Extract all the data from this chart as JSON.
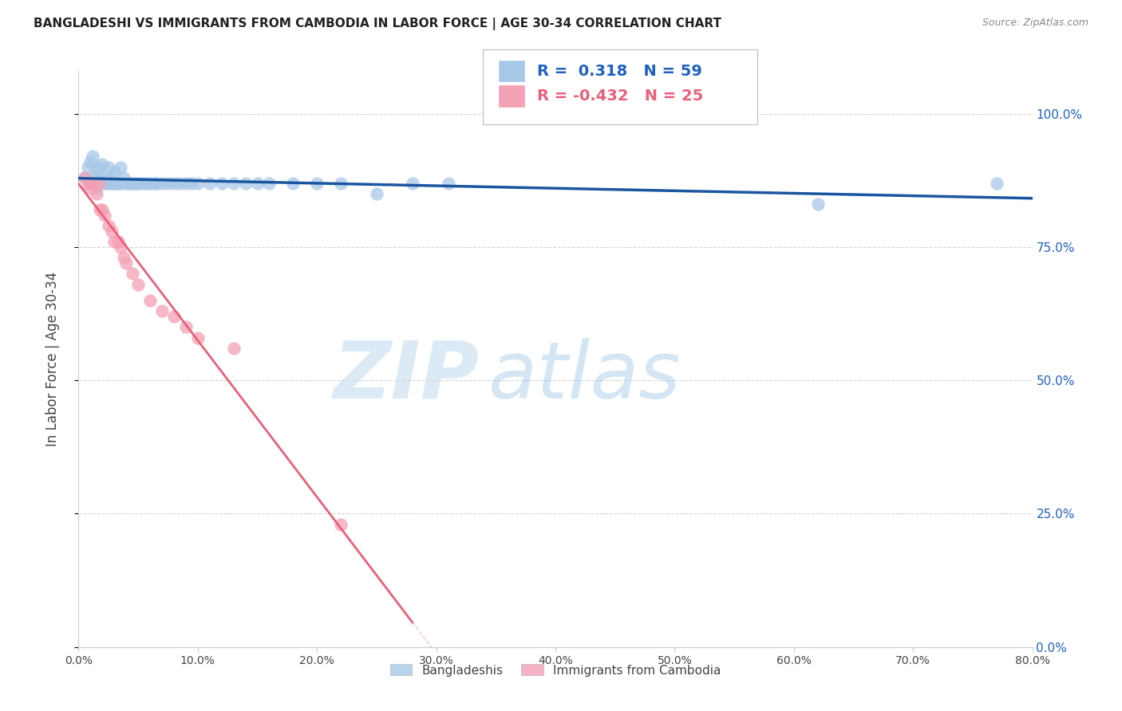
{
  "title": "BANGLADESHI VS IMMIGRANTS FROM CAMBODIA IN LABOR FORCE | AGE 30-34 CORRELATION CHART",
  "source": "Source: ZipAtlas.com",
  "ylabel": "In Labor Force | Age 30-34",
  "xlim": [
    0.0,
    0.8
  ],
  "ylim": [
    0.0,
    1.08
  ],
  "watermark_zip": "ZIP",
  "watermark_atlas": "atlas",
  "legend_blue_label": "Bangladeshis",
  "legend_pink_label": "Immigrants from Cambodia",
  "legend_blue_r": "0.318",
  "legend_blue_n": "59",
  "legend_pink_r": "-0.432",
  "legend_pink_n": "25",
  "blue_color": "#a8c8e8",
  "pink_color": "#f4a0b5",
  "blue_line_color": "#1a56a0",
  "pink_line_color": "#e8607a",
  "grid_color": "#d0d0d0",
  "background_color": "#ffffff",
  "title_color": "#222222",
  "source_color": "#888888",
  "axis_label_color": "#444444",
  "ytick_color": "#2060c0",
  "xtick_color": "#444444",
  "blue_scatter_x": [
    0.005,
    0.008,
    0.01,
    0.01,
    0.012,
    0.013,
    0.015,
    0.015,
    0.016,
    0.017,
    0.018,
    0.02,
    0.02,
    0.022,
    0.023,
    0.025,
    0.025,
    0.027,
    0.028,
    0.03,
    0.03,
    0.032,
    0.033,
    0.035,
    0.036,
    0.038,
    0.04,
    0.042,
    0.043,
    0.045,
    0.048,
    0.05,
    0.052,
    0.055,
    0.058,
    0.06,
    0.063,
    0.065,
    0.07,
    0.075,
    0.08,
    0.085,
    0.09,
    0.095,
    0.1,
    0.11,
    0.12,
    0.13,
    0.14,
    0.15,
    0.16,
    0.18,
    0.2,
    0.22,
    0.25,
    0.28,
    0.31,
    0.62,
    0.77
  ],
  "blue_scatter_y": [
    0.88,
    0.9,
    0.87,
    0.91,
    0.92,
    0.88,
    0.86,
    0.895,
    0.87,
    0.9,
    0.88,
    0.87,
    0.905,
    0.88,
    0.87,
    0.87,
    0.9,
    0.88,
    0.87,
    0.87,
    0.89,
    0.87,
    0.87,
    0.9,
    0.87,
    0.88,
    0.87,
    0.87,
    0.87,
    0.87,
    0.87,
    0.87,
    0.87,
    0.87,
    0.87,
    0.87,
    0.87,
    0.87,
    0.87,
    0.87,
    0.87,
    0.87,
    0.87,
    0.87,
    0.87,
    0.87,
    0.87,
    0.87,
    0.87,
    0.87,
    0.87,
    0.87,
    0.87,
    0.87,
    0.85,
    0.87,
    0.87,
    0.83,
    0.87
  ],
  "pink_scatter_x": [
    0.005,
    0.008,
    0.01,
    0.012,
    0.015,
    0.017,
    0.018,
    0.02,
    0.022,
    0.025,
    0.028,
    0.03,
    0.033,
    0.035,
    0.038,
    0.04,
    0.045,
    0.05,
    0.06,
    0.07,
    0.08,
    0.09,
    0.1,
    0.13,
    0.22
  ],
  "pink_scatter_y": [
    0.88,
    0.87,
    0.86,
    0.87,
    0.85,
    0.87,
    0.82,
    0.82,
    0.81,
    0.79,
    0.78,
    0.76,
    0.76,
    0.75,
    0.73,
    0.72,
    0.7,
    0.68,
    0.65,
    0.63,
    0.62,
    0.6,
    0.58,
    0.56,
    0.23
  ],
  "pink_line_solid_end": 0.28,
  "pink_line_dash_end": 0.8
}
